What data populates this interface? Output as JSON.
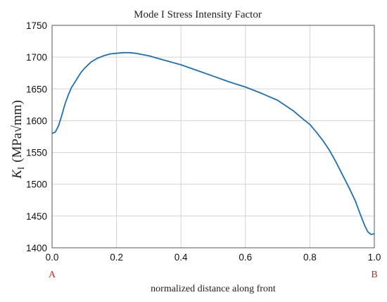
{
  "chart_data": {
    "type": "line",
    "title": "Mode I Stress Intensity Factor",
    "xlabel": "normalized distance along front",
    "ylabel_symbol": "K",
    "ylabel_subscript": "I",
    "ylabel_unit": "(MPa√mm)",
    "xlim": [
      0,
      1
    ],
    "ylim": [
      1400,
      1750
    ],
    "xticks": [
      "0.0",
      "0.2",
      "0.4",
      "0.6",
      "0.8",
      "1.0"
    ],
    "yticks": [
      "1400",
      "1450",
      "1500",
      "1550",
      "1600",
      "1650",
      "1700",
      "1750"
    ],
    "grid": true,
    "end_labels": {
      "start": "A",
      "end": "B"
    },
    "colors": {
      "line": "#1f6fb2",
      "grid": "#d3d3d3",
      "end_labels": "#b03030",
      "axes": "#555555"
    },
    "series": [
      {
        "x": [
          0.0,
          0.01,
          0.02,
          0.03,
          0.04,
          0.05,
          0.06,
          0.07,
          0.08,
          0.09,
          0.1,
          0.12,
          0.14,
          0.16,
          0.18,
          0.2,
          0.22,
          0.24,
          0.26,
          0.28,
          0.3,
          0.35,
          0.4,
          0.45,
          0.5,
          0.55,
          0.6,
          0.65,
          0.7,
          0.75,
          0.78,
          0.8,
          0.82,
          0.84,
          0.86,
          0.88,
          0.9,
          0.92,
          0.94,
          0.96,
          0.97,
          0.98,
          0.99,
          1.0
        ],
        "y": [
          1580,
          1582,
          1592,
          1608,
          1626,
          1640,
          1652,
          1660,
          1668,
          1676,
          1682,
          1692,
          1698,
          1702,
          1705,
          1706,
          1707,
          1707,
          1706,
          1704,
          1702,
          1695,
          1688,
          1679,
          1670,
          1661,
          1653,
          1643,
          1632,
          1615,
          1602,
          1594,
          1582,
          1569,
          1554,
          1536,
          1516,
          1496,
          1475,
          1448,
          1435,
          1425,
          1421,
          1422
        ]
      }
    ]
  }
}
